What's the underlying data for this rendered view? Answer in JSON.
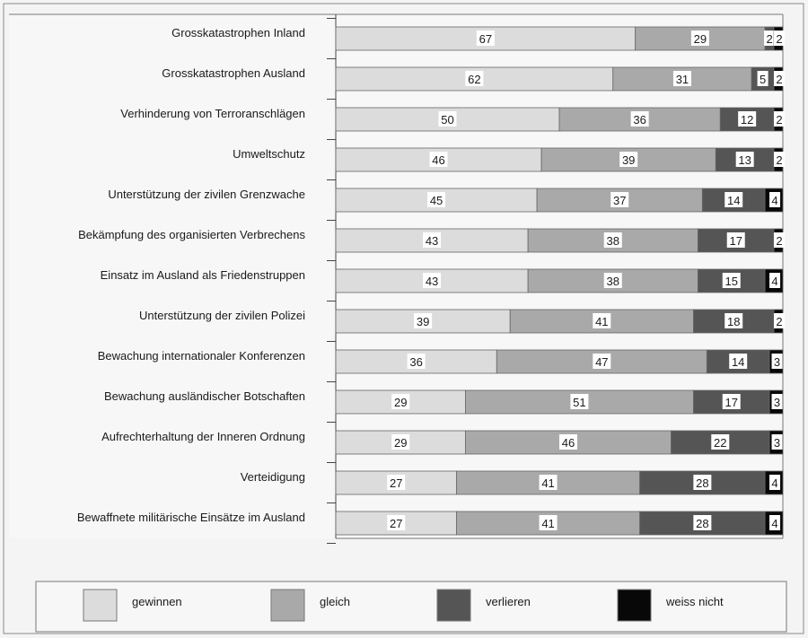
{
  "chart_data": {
    "type": "bar",
    "orientation": "horizontal",
    "stacked": true,
    "categories": [
      "Grosskatastrophen Inland",
      "Grosskatastrophen Ausland",
      "Verhinderung von Terroranschlägen",
      "Umweltschutz",
      "Unterstützung der zivilen Grenzwache",
      "Bekämpfung des organisierten Verbrechens",
      "Einsatz im Ausland als Friedenstruppen",
      "Unterstützung der zivilen Polizei",
      "Bewachung internationaler Konferenzen",
      "Bewachung ausländischer Botschaften",
      "Aufrechterhaltung der Inneren Ordnung",
      "Verteidigung",
      "Bewaffnete militärische Einsätze im Ausland"
    ],
    "series": [
      {
        "name": "gewinnen",
        "color": "#dcdcdc",
        "values": [
          67,
          62,
          50,
          46,
          45,
          43,
          43,
          39,
          36,
          29,
          29,
          27,
          27
        ]
      },
      {
        "name": "gleich",
        "color": "#a9a9a9",
        "values": [
          29,
          31,
          36,
          39,
          37,
          38,
          38,
          41,
          47,
          51,
          46,
          41,
          41
        ]
      },
      {
        "name": "verlieren",
        "color": "#555555",
        "values": [
          2,
          5,
          12,
          13,
          14,
          17,
          15,
          18,
          14,
          17,
          22,
          28,
          28
        ]
      },
      {
        "name": "weiss nicht",
        "color": "#080808",
        "values": [
          2,
          2,
          2,
          2,
          4,
          2,
          4,
          2,
          3,
          3,
          3,
          4,
          4
        ]
      }
    ],
    "xlim": [
      0,
      100
    ],
    "grid": false,
    "legend_position": "bottom"
  }
}
